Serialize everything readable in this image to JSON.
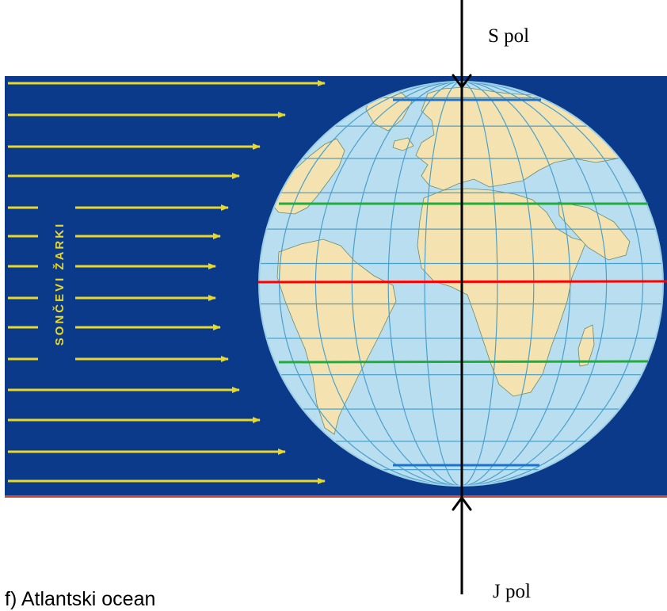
{
  "labels": {
    "north_pole": "S pol",
    "south_pole": "J pol",
    "rays_caption": "SONČEVI ŽARKI",
    "cut_off_line": "f) Atlantski ocean"
  },
  "colors": {
    "panel_background": "#0b3a8a",
    "ocean": "#b9def0",
    "land": "#f4e3b1",
    "graticule": "#4aa0cc",
    "sun_rays": "#e8d82a",
    "equator": "#ff0000",
    "tropics": "#1fae3a",
    "polar_circles": "#1a74d0",
    "earth_axis": "#000000",
    "panel_bottom_edge": "#c84a3a"
  },
  "icons": [
    "sun-ray-arrow",
    "pole-arrow"
  ]
}
